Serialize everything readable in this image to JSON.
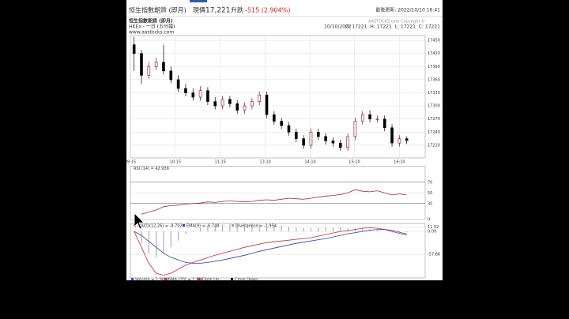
{
  "header": {
    "title": "恒生指數期貨 (即月)",
    "price_label": "現價",
    "price": "17,221",
    "change_label": "升跌",
    "change": "-515 (2.904%)",
    "updated": "最後更新: 2022/10/10 16:41"
  },
  "chart_info": {
    "name": "恒生指數期貨 (即月)",
    "source": "HKEx - 一日 (五分鐘)",
    "site": "www.aastocks.com",
    "copyright": "AASTOCKS.com Copyright ©",
    "date": "10/10/2022",
    "ohlc": "O: 17221  H: 17221  L: 17221  C: 17221"
  },
  "chart_data": [
    {
      "type": "candlestick",
      "up_color": "#ffffff",
      "down_color": "#000000",
      "edge_color": "#7a1020",
      "xlim": [
        0,
        40
      ],
      "xticks": [
        {
          "value": 0,
          "label": "09:15"
        },
        {
          "value": 6.1,
          "label": "10:15"
        },
        {
          "value": 12.2,
          "label": "11:15"
        },
        {
          "value": 18.3,
          "label": "13:10"
        },
        {
          "value": 24.4,
          "label": "14:10"
        },
        {
          "value": 30.4,
          "label": "15:10"
        },
        {
          "value": 36.5,
          "label": "16:10"
        }
      ],
      "ylim": [
        17181,
        17461
      ],
      "yticks": [
        17210,
        17240,
        17270,
        17300,
        17330,
        17360,
        17390,
        17420,
        17450
      ],
      "grid": true,
      "open": [
        17440,
        17420,
        17370,
        17390,
        17400,
        17380,
        17360,
        17340,
        17330,
        17320,
        17335,
        17310,
        17300,
        17315,
        17305,
        17290,
        17300,
        17310,
        17325,
        17280,
        17265,
        17255,
        17240,
        17225,
        17210,
        17240,
        17230,
        17220,
        17215,
        17205,
        17230,
        17265,
        17280,
        17270,
        17270,
        17250,
        17215,
        17225
      ],
      "high": [
        17458,
        17428,
        17400,
        17410,
        17440,
        17390,
        17370,
        17350,
        17340,
        17345,
        17343,
        17320,
        17323,
        17323,
        17313,
        17308,
        17318,
        17333,
        17333,
        17288,
        17273,
        17263,
        17248,
        17233,
        17248,
        17248,
        17238,
        17228,
        17223,
        17238,
        17273,
        17288,
        17290,
        17278,
        17278,
        17258,
        17233,
        17230
      ],
      "low": [
        17380,
        17350,
        17362,
        17382,
        17372,
        17352,
        17332,
        17322,
        17312,
        17312,
        17302,
        17292,
        17292,
        17297,
        17282,
        17282,
        17292,
        17302,
        17272,
        17257,
        17247,
        17232,
        17217,
        17202,
        17202,
        17222,
        17212,
        17207,
        17197,
        17197,
        17222,
        17257,
        17262,
        17262,
        17242,
        17207,
        17207,
        17213
      ],
      "close": [
        17420,
        17370,
        17390,
        17400,
        17380,
        17360,
        17340,
        17330,
        17320,
        17335,
        17310,
        17300,
        17315,
        17305,
        17290,
        17300,
        17310,
        17325,
        17280,
        17265,
        17255,
        17240,
        17225,
        17210,
        17240,
        17230,
        17220,
        17215,
        17205,
        17230,
        17265,
        17280,
        17270,
        17270,
        17250,
        17215,
        17225,
        17221
      ]
    },
    {
      "type": "line",
      "title": "RSI (14) = 42.939",
      "color": "#a0303a",
      "xlim": [
        0,
        40
      ],
      "ylim": [
        0,
        100
      ],
      "yticks": [
        0,
        30,
        50,
        70
      ],
      "values": [
        null,
        10,
        14,
        18,
        24,
        26,
        27,
        29,
        30,
        31,
        33,
        32,
        34,
        35,
        34,
        33,
        34,
        36,
        37,
        36,
        38,
        40,
        39,
        38,
        40,
        42,
        44,
        45,
        47,
        50,
        56,
        53,
        52,
        54,
        50,
        46,
        48,
        46
      ]
    },
    {
      "type": "macd",
      "xlim": [
        0,
        40
      ],
      "ylim": [
        -117,
        20
      ],
      "yticks": [
        11.52,
        {
          "value": 0,
          "label": "0.00"
        },
        -57.66
      ],
      "series": [
        {
          "name": "MACD(12,26) = -8.702",
          "color": "#c0303a",
          "style": "line",
          "values": [
            0,
            -40,
            -80,
            -105,
            -110,
            -105,
            -95,
            -85,
            -78,
            -72,
            -66,
            -60,
            -55,
            -50,
            -45,
            -40,
            -36,
            -32,
            -28,
            -26,
            -24,
            -22,
            -20,
            -18,
            -16,
            -12,
            -8,
            -4,
            0,
            2,
            5,
            8,
            9,
            8,
            5,
            0,
            -5,
            -8.7
          ]
        },
        {
          "name": "EMA(9) = -6.748",
          "color": "#3040a0",
          "style": "line",
          "values": [
            0,
            -10,
            -25,
            -40,
            -55,
            -65,
            -72,
            -78,
            -80,
            -80,
            -78,
            -75,
            -72,
            -68,
            -64,
            -60,
            -55,
            -50,
            -46,
            -42,
            -38,
            -34,
            -30,
            -27,
            -24,
            -21,
            -18,
            -14,
            -10,
            -6,
            -3,
            0,
            3,
            5,
            5,
            3,
            -2,
            -6.7
          ]
        },
        {
          "name": "Divergence = -1.954",
          "color": "#9aa0b0",
          "style": "bar",
          "values": [
            0,
            -30,
            -55,
            -65,
            -55,
            -40,
            -23,
            -7,
            2,
            8,
            12,
            15,
            17,
            18,
            19,
            20,
            19,
            18,
            18,
            16,
            14,
            12,
            10,
            9,
            8,
            9,
            10,
            10,
            10,
            8,
            8,
            8,
            6,
            3,
            0,
            -3,
            -3,
            -2
          ]
        }
      ]
    }
  ],
  "footer_legend": [
    {
      "label": "Volume = 1.904K",
      "color": "#3050c0"
    },
    {
      "label": "SMA (20) = 1.19K",
      "color": "#c03040"
    },
    {
      "label": "Close Up",
      "color": "#c03040"
    },
    {
      "label": "Close Down",
      "color": "#000000"
    }
  ]
}
